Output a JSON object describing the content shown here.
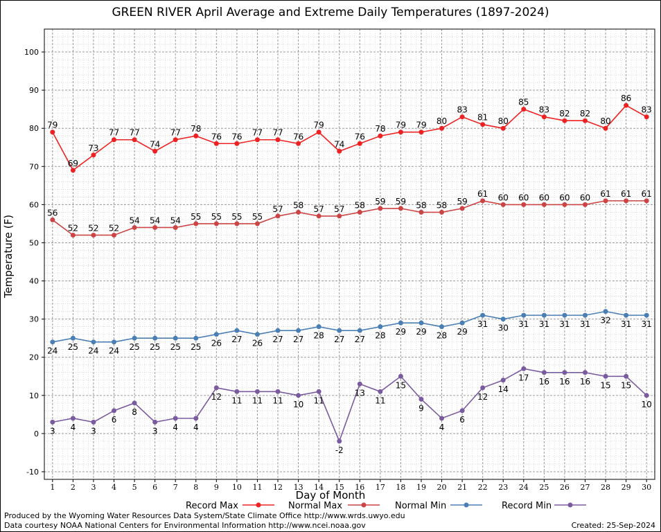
{
  "chart_data": {
    "type": "line",
    "title": "GREEN RIVER April Average and Extreme Daily Temperatures (1897-2024)",
    "xlabel": "Day of Month",
    "ylabel": "Temperature (F)",
    "x": [
      1,
      2,
      3,
      4,
      5,
      6,
      7,
      8,
      9,
      10,
      11,
      12,
      13,
      14,
      15,
      16,
      17,
      18,
      19,
      20,
      21,
      22,
      23,
      24,
      25,
      26,
      27,
      28,
      29,
      30
    ],
    "xlim": [
      0.6,
      30.4
    ],
    "ylim": [
      -12,
      106
    ],
    "yticks": [
      -10,
      0,
      10,
      20,
      30,
      40,
      50,
      60,
      70,
      80,
      90,
      100
    ],
    "grid": true,
    "legend_position": "bottom",
    "series": [
      {
        "name": "Record Max",
        "color": "#ee2222",
        "values": [
          79,
          69,
          73,
          77,
          77,
          74,
          77,
          78,
          76,
          76,
          77,
          77,
          76,
          79,
          74,
          76,
          78,
          79,
          79,
          80,
          83,
          81,
          80,
          85,
          83,
          82,
          82,
          80,
          86,
          83
        ]
      },
      {
        "name": "Normal Max",
        "color": "#cc4444",
        "values": [
          56,
          52,
          52,
          52,
          54,
          54,
          54,
          55,
          55,
          55,
          55,
          57,
          58,
          57,
          57,
          58,
          59,
          59,
          58,
          58,
          59,
          61,
          60,
          60,
          60,
          60,
          60,
          61,
          61,
          61
        ]
      },
      {
        "name": "Normal Min",
        "color": "#4a7fb5",
        "values": [
          24,
          25,
          24,
          24,
          25,
          25,
          25,
          25,
          26,
          27,
          26,
          27,
          27,
          28,
          27,
          27,
          28,
          29,
          29,
          28,
          29,
          31,
          30,
          31,
          31,
          31,
          31,
          32,
          31,
          31
        ]
      },
      {
        "name": "Record Min",
        "color": "#7b5ba0",
        "values": [
          3,
          4,
          3,
          6,
          8,
          3,
          4,
          4,
          12,
          11,
          11,
          11,
          10,
          11,
          -2,
          13,
          11,
          15,
          9,
          4,
          6,
          12,
          14,
          17,
          16,
          16,
          16,
          15,
          15,
          10
        ]
      }
    ]
  },
  "footer": {
    "credit1": "Produced by the Wyoming Water Resources Data System/State Climate Office http://www.wrds.uwyo.edu",
    "credit2": "Data courtesy NOAA National Centers for Environmental Information http://www.ncei.noaa.gov",
    "created": "Created: 25-Sep-2024"
  }
}
